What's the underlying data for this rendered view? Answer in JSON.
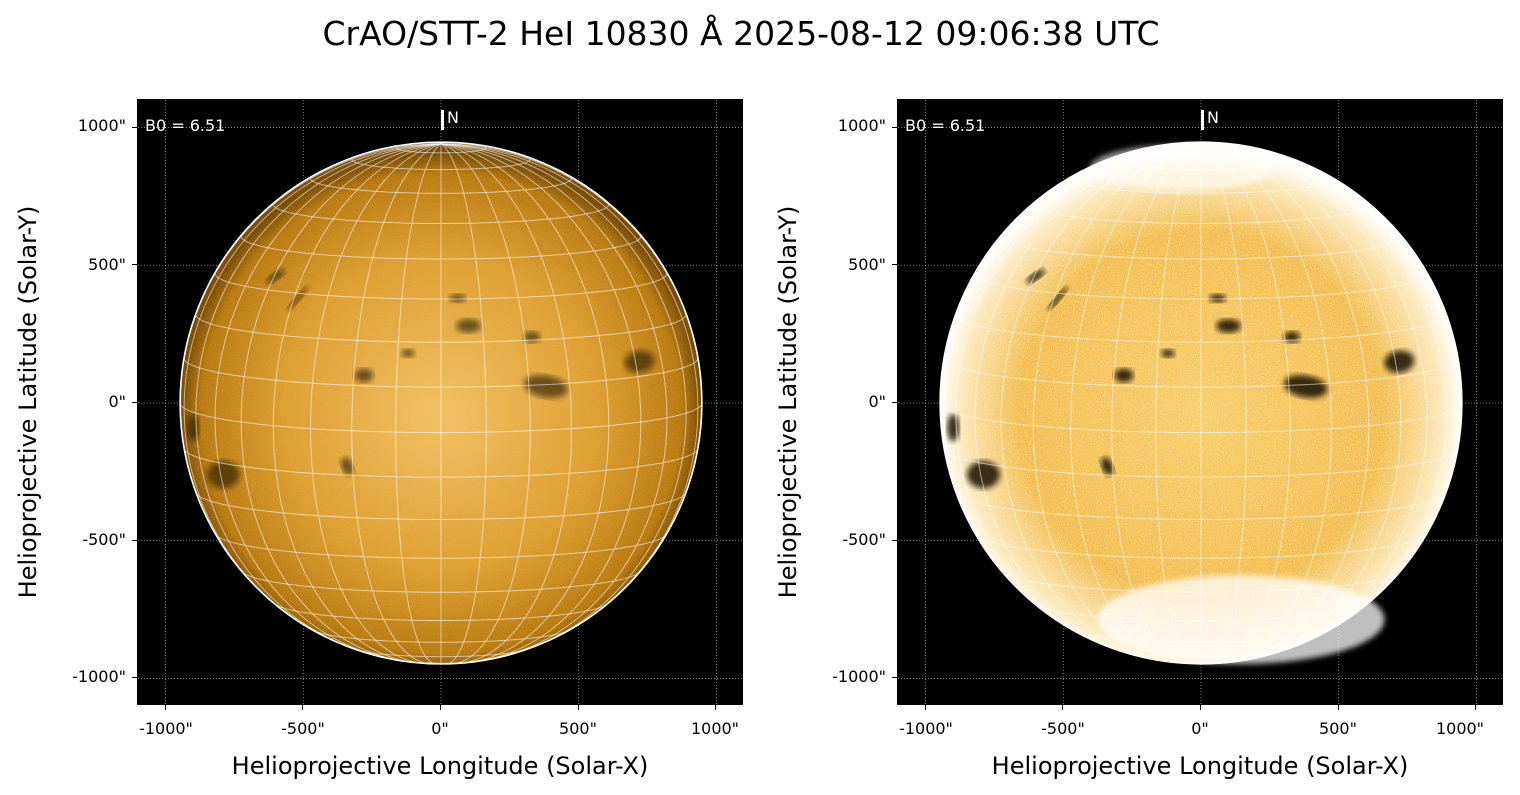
{
  "title": "CrAO/STT-2 HeI 10830 Å 2025-08-12 09:06:38 UTC",
  "colors": {
    "background": "#000000",
    "disk_base": "#d4920f",
    "disk_bright": "#ffe7b0",
    "grid": "#ffffff"
  },
  "panels": [
    {
      "id": "left",
      "b0_text": "B0 = 6.51",
      "north_label": "N",
      "xlabel": "Helioprojective Longitude (Solar-X)",
      "ylabel": "Helioprojective Latitude (Solar-Y)",
      "xticks": [
        "-1000\"",
        "-500\"",
        "0\"",
        "500\"",
        "1000\""
      ],
      "yticks": [
        "1000\"",
        "500\"",
        "0\"",
        "-500\"",
        "-1000\""
      ],
      "contrast": "normal"
    },
    {
      "id": "right",
      "b0_text": "B0 = 6.51",
      "north_label": "N",
      "xlabel": "Helioprojective Longitude (Solar-X)",
      "ylabel": "Helioprojective Latitude (Solar-Y)",
      "xticks": [
        "-1000\"",
        "-500\"",
        "0\"",
        "500\"",
        "1000\""
      ],
      "yticks": [
        "1000\"",
        "500\"",
        "0\"",
        "-500\"",
        "-1000\""
      ],
      "contrast": "enhanced"
    }
  ],
  "axis_range_arcsec": [
    -1100,
    1100
  ],
  "solar_radius_arcsec": 947,
  "b0_deg": 6.51,
  "grid_step_deg": 10,
  "dark_features": [
    {
      "x": -600,
      "y": 460,
      "rx": 40,
      "ry": 14,
      "rot": 35
    },
    {
      "x": -520,
      "y": 380,
      "rx": 55,
      "ry": 10,
      "rot": 50
    },
    {
      "x": -280,
      "y": 100,
      "rx": 35,
      "ry": 25,
      "rot": 0
    },
    {
      "x": 380,
      "y": 60,
      "rx": 80,
      "ry": 40,
      "rot": -10
    },
    {
      "x": 330,
      "y": 240,
      "rx": 30,
      "ry": 20,
      "rot": 0
    },
    {
      "x": 720,
      "y": 150,
      "rx": 55,
      "ry": 40,
      "rot": 10
    },
    {
      "x": 100,
      "y": 280,
      "rx": 45,
      "ry": 25,
      "rot": 0
    },
    {
      "x": -790,
      "y": -260,
      "rx": 60,
      "ry": 50,
      "rot": 0
    },
    {
      "x": -340,
      "y": -230,
      "rx": 20,
      "ry": 35,
      "rot": 20
    },
    {
      "x": -900,
      "y": -90,
      "rx": 22,
      "ry": 50,
      "rot": 0
    },
    {
      "x": 60,
      "y": 380,
      "rx": 30,
      "ry": 15,
      "rot": 0
    },
    {
      "x": -120,
      "y": 180,
      "rx": 25,
      "ry": 15,
      "rot": 0
    }
  ]
}
